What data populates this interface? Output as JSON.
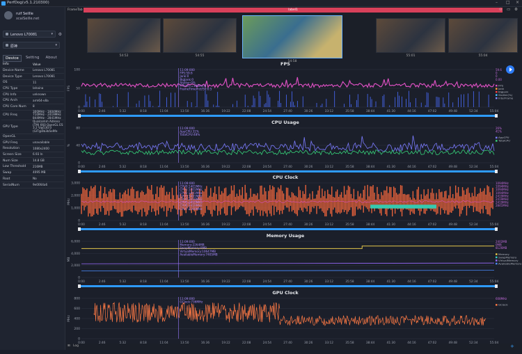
{
  "app": {
    "title": "PerfDog(v5.1.210300)",
    "icons": [
      "minimize-icon",
      "maximize-icon",
      "close-icon"
    ]
  },
  "account": {
    "name": "ruif Seillle",
    "email": "xcaiSeille.net"
  },
  "device_select": {
    "value": "Lenovo L70081",
    "icon": "phone-icon"
  },
  "app_select": {
    "value": "原神",
    "icon": "app-icon"
  },
  "left_tabs": [
    "Device",
    "Setting",
    "About"
  ],
  "info": {
    "headers": [
      "Info",
      "Value"
    ],
    "rows": [
      [
        "Device Name",
        "Lenovo L70081"
      ],
      [
        "Device Type",
        "Lenovo L70081"
      ],
      [
        "OS",
        "11"
      ],
      [
        "CPU Type",
        "lahaina"
      ],
      [
        "CPU Info",
        "unknown"
      ],
      [
        "CPU Arch",
        "arm64-v8a"
      ],
      [
        "CPU Core Num",
        "8"
      ],
      [
        "CPU Freq",
        "300MHz - 1804MHz 710MHz - 2419MHz 844MHz - 2841MHz"
      ],
      [
        "GPU Type",
        "Qualcomm Adreno (TM) 660 OpenGL ES 3.2 V@530.0 (GIT@0b3b5e9fe"
      ],
      [
        "OpenGL",
        ""
      ],
      [
        "GPU Freq",
        "unavailable"
      ],
      [
        "Resolution",
        "1080x2400"
      ],
      [
        "Screen Size",
        "6.93 In"
      ],
      [
        "Num Size",
        "14.8 GB"
      ],
      [
        "Low Threshold",
        "216MB"
      ],
      [
        "Swap",
        "4095 MB"
      ],
      [
        "Root",
        "No"
      ],
      [
        "SerialNum",
        "9e0064a6"
      ]
    ]
  },
  "strip": {
    "label": "FrameTab",
    "tag": "label1",
    "times": [
      "54:52",
      "54:55",
      "54:58",
      "55:01",
      "55:04"
    ]
  },
  "axis_times": [
    "0:00",
    "2:46",
    "5:32",
    "8:18",
    "11:04",
    "13:50",
    "16:36",
    "19:22",
    "22:08",
    "24:54",
    "27:40",
    "30:26",
    "33:12",
    "35:58",
    "38:44",
    "41:30",
    "44:16",
    "47:02",
    "49:48",
    "52:34",
    "55:04"
  ],
  "charts": [
    {
      "id": "fps",
      "title": "FPS",
      "ylabel": "FPS",
      "yticks": [
        "100",
        "50",
        "0"
      ],
      "tooltip": [
        "11:09:000",
        "FPS:59.6",
        "Jank:0",
        "BigJank:0",
        "Stutter:0%",
        "FTime>=100ms:0",
        "FrameTimePrct/50:0.5"
      ],
      "legend": [
        {
          "name": "FPS",
          "color": "#d94fbf"
        },
        {
          "name": "Jank",
          "color": "#ff9a3c"
        },
        {
          "name": "BigJank",
          "color": "#ff4040"
        },
        {
          "name": "Stutter(%)",
          "color": "#40c0ff"
        },
        {
          "name": "InterFrame",
          "color": "#8a8aff"
        }
      ],
      "right_values": [
        "59.6",
        "0",
        "0",
        "0.00"
      ]
    },
    {
      "id": "cpu",
      "title": "CPU Usage",
      "ylabel": "%",
      "yticks": [
        "80",
        "40",
        "0"
      ],
      "tooltip": [
        "11:09:000",
        "AppCPU:31%",
        "TotalCPU:48%"
      ],
      "legend": [
        {
          "name": "AppCPU",
          "color": "#7b7bff"
        },
        {
          "name": "TotalCPU",
          "color": "#36d27a"
        }
      ],
      "right_values": [
        "26%",
        "41%"
      ]
    },
    {
      "id": "cpuclk",
      "title": "CPU Clock",
      "ylabel": "MHz",
      "yticks": [
        "3,000",
        "2,000",
        "1,000",
        "0"
      ],
      "tooltip": [
        "11:09:000",
        "CPU0:1401MHz",
        "CPU1:1401MHz",
        "CPU2:1401MHz",
        "CPU3:1401MHz",
        "CPU4:2419MHz",
        "CPU5:2419MHz",
        "CPU6:2419MHz",
        "CPU7:2169MHz"
      ],
      "right_values": [
        "1094MHz",
        "1094MHz",
        "1094MHz",
        "1094MHz",
        "2419MHz",
        "2419MHz",
        "2419MHz",
        "2841MHz"
      ]
    },
    {
      "id": "mem",
      "title": "Memory Usage",
      "ylabel": "MB",
      "yticks": [
        "6,000",
        "4,000",
        "2,000",
        "0"
      ],
      "tooltip": [
        "11:09:000",
        "Memory:2264MB",
        "SwapMemory:0MB",
        "VirtualMemory:10647MB",
        "AvailableMemory:7405MB"
      ],
      "legend": [
        {
          "name": "Memory",
          "color": "#e6c84a"
        },
        {
          "name": "SwapMemory",
          "color": "#36d2c8"
        },
        {
          "name": "VirtualMemory",
          "color": "#9a6bff"
        },
        {
          "name": "AvailableMemory",
          "color": "#4a8cff"
        }
      ],
      "right_values": [
        "2402MB",
        "0MB",
        "8126MB"
      ]
    },
    {
      "id": "gpu",
      "title": "GPU Clock",
      "ylabel": "MHz",
      "yticks": [
        "800",
        "600",
        "400",
        "200",
        "0"
      ],
      "tooltip": [
        "11:09:000",
        "GClock:736MHz"
      ],
      "legend": [
        {
          "name": "GClock",
          "color": "#ff7a45"
        }
      ],
      "right_values": [
        "608MHz"
      ]
    }
  ],
  "bottom": {
    "label": "Log"
  },
  "colors": {
    "accent": "#2e9bff",
    "fps": "#d94fbf",
    "app_cpu": "#7b7bff",
    "total_cpu": "#36d27a",
    "cpu_clk": "#ff6a3d",
    "cpu_clk_alt": "#36c9b0",
    "memory": "#e6c84a",
    "virtual_mem": "#9a6bff",
    "avail_mem": "#4a8cff",
    "gpu": "#ff7a45",
    "tooltip": "#9a7bff"
  }
}
